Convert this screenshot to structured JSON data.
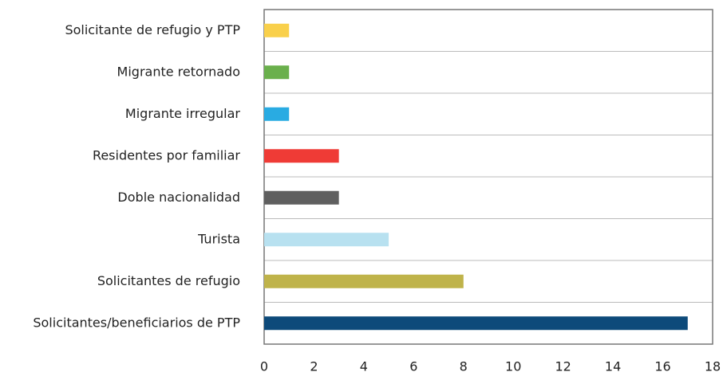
{
  "chart_data": {
    "type": "bar",
    "orientation": "horizontal",
    "categories": [
      "Solicitante de refugio y PTP",
      "Migrante retornado",
      "Migrante irregular",
      "Residentes por familiar",
      "Doble nacionalidad",
      "Turista",
      "Solicitantes de refugio",
      "Solicitantes/beneficiarios de PTP"
    ],
    "values": [
      1,
      1,
      1,
      3,
      3,
      5,
      8,
      17
    ],
    "colors": [
      "#f9d04b",
      "#6ab04c",
      "#29abe2",
      "#ef3b36",
      "#5f5f5f",
      "#b8e1f0",
      "#bfb34a",
      "#0d4a7a"
    ],
    "xlim": [
      0,
      18
    ],
    "xticks": [
      0,
      2,
      4,
      6,
      8,
      10,
      12,
      14,
      16,
      18
    ]
  }
}
